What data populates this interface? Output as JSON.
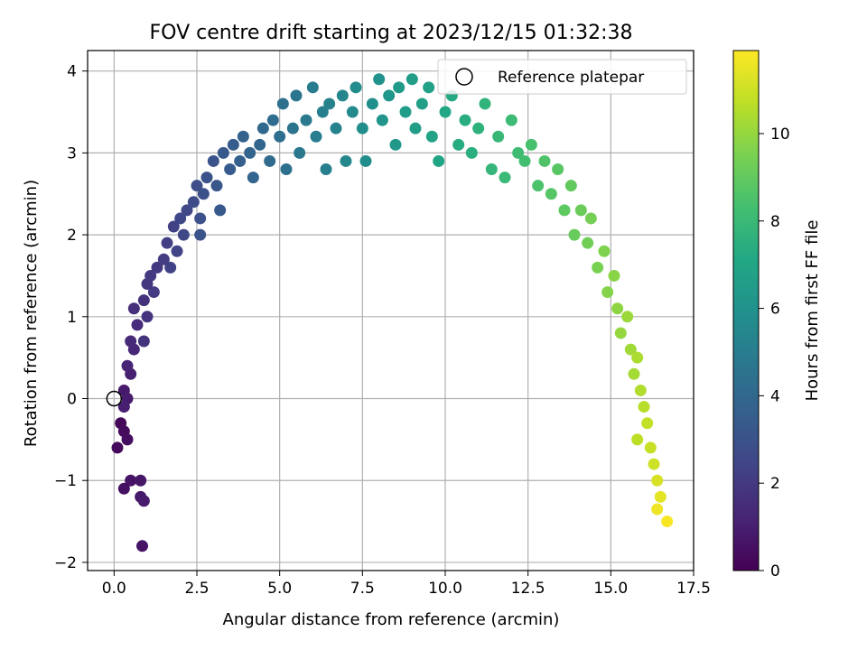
{
  "chart_data": {
    "type": "scatter",
    "title": "FOV centre drift starting at 2023/12/15 01:32:38",
    "xlabel": "Angular distance from reference (arcmin)",
    "ylabel": "Rotation from reference (arcmin)",
    "xlim": [
      -0.8,
      17.5
    ],
    "ylim": [
      -2.1,
      4.25
    ],
    "xticks": [
      0.0,
      2.5,
      5.0,
      7.5,
      10.0,
      12.5,
      15.0,
      17.5
    ],
    "xtick_labels": [
      "0.0",
      "2.5",
      "5.0",
      "7.5",
      "10.0",
      "12.5",
      "15.0",
      "17.5"
    ],
    "yticks": [
      -2,
      -1,
      0,
      1,
      2,
      3,
      4
    ],
    "ytick_labels": [
      "−2",
      "−1",
      "0",
      "1",
      "2",
      "3",
      "4"
    ],
    "grid": true,
    "legend": {
      "location": "upper right",
      "entries": [
        {
          "label": "Reference platepar",
          "marker": "hollow-circle",
          "x": 0.0,
          "y": 0.0
        }
      ]
    },
    "colorbar": {
      "label": "Hours from first FF file",
      "colormap": "viridis",
      "range": [
        0,
        11.9
      ],
      "ticks": [
        0,
        2,
        4,
        6,
        8,
        10
      ],
      "tick_labels": [
        "0",
        "2",
        "4",
        "6",
        "8",
        "10"
      ]
    },
    "series": [
      {
        "color_by": "hours",
        "points": [
          {
            "x": 0.2,
            "y": -0.3,
            "c": 0.2
          },
          {
            "x": 0.3,
            "y": -0.4,
            "c": 0.3
          },
          {
            "x": 0.1,
            "y": -0.6,
            "c": 0.3
          },
          {
            "x": 0.4,
            "y": -0.5,
            "c": 0.4
          },
          {
            "x": 0.3,
            "y": -1.1,
            "c": 0.5
          },
          {
            "x": 0.5,
            "y": -1.0,
            "c": 0.6
          },
          {
            "x": 0.8,
            "y": -1.0,
            "c": 0.7
          },
          {
            "x": 0.8,
            "y": -1.2,
            "c": 0.8
          },
          {
            "x": 0.9,
            "y": -1.25,
            "c": 0.9
          },
          {
            "x": 0.85,
            "y": -1.8,
            "c": 0.6
          },
          {
            "x": 0.3,
            "y": 0.1,
            "c": 0.8
          },
          {
            "x": 0.4,
            "y": 0.0,
            "c": 0.9
          },
          {
            "x": 0.3,
            "y": -0.1,
            "c": 1.0
          },
          {
            "x": 0.5,
            "y": 0.3,
            "c": 1.1
          },
          {
            "x": 0.4,
            "y": 0.4,
            "c": 1.2
          },
          {
            "x": 0.6,
            "y": 0.6,
            "c": 1.3
          },
          {
            "x": 0.5,
            "y": 0.7,
            "c": 1.4
          },
          {
            "x": 0.7,
            "y": 0.9,
            "c": 1.5
          },
          {
            "x": 0.6,
            "y": 1.1,
            "c": 1.6
          },
          {
            "x": 0.9,
            "y": 1.2,
            "c": 1.7
          },
          {
            "x": 1.0,
            "y": 1.0,
            "c": 1.8
          },
          {
            "x": 0.9,
            "y": 0.7,
            "c": 1.8
          },
          {
            "x": 1.0,
            "y": 1.4,
            "c": 1.9
          },
          {
            "x": 1.1,
            "y": 1.5,
            "c": 2.0
          },
          {
            "x": 1.3,
            "y": 1.6,
            "c": 2.0
          },
          {
            "x": 1.2,
            "y": 1.3,
            "c": 2.1
          },
          {
            "x": 1.5,
            "y": 1.7,
            "c": 2.1
          },
          {
            "x": 1.6,
            "y": 1.9,
            "c": 2.2
          },
          {
            "x": 1.7,
            "y": 1.6,
            "c": 2.3
          },
          {
            "x": 1.8,
            "y": 2.1,
            "c": 2.3
          },
          {
            "x": 1.9,
            "y": 1.8,
            "c": 2.4
          },
          {
            "x": 2.0,
            "y": 2.2,
            "c": 2.5
          },
          {
            "x": 2.1,
            "y": 2.0,
            "c": 2.6
          },
          {
            "x": 2.2,
            "y": 2.3,
            "c": 2.6
          },
          {
            "x": 2.4,
            "y": 2.4,
            "c": 2.7
          },
          {
            "x": 2.5,
            "y": 2.6,
            "c": 2.8
          },
          {
            "x": 2.6,
            "y": 2.2,
            "c": 2.9
          },
          {
            "x": 2.7,
            "y": 2.5,
            "c": 2.9
          },
          {
            "x": 2.8,
            "y": 2.7,
            "c": 3.0
          },
          {
            "x": 2.6,
            "y": 2.0,
            "c": 3.0
          },
          {
            "x": 3.0,
            "y": 2.9,
            "c": 3.1
          },
          {
            "x": 3.1,
            "y": 2.6,
            "c": 3.2
          },
          {
            "x": 3.3,
            "y": 3.0,
            "c": 3.3
          },
          {
            "x": 3.2,
            "y": 2.3,
            "c": 3.3
          },
          {
            "x": 3.5,
            "y": 2.8,
            "c": 3.4
          },
          {
            "x": 3.6,
            "y": 3.1,
            "c": 3.5
          },
          {
            "x": 3.8,
            "y": 2.9,
            "c": 3.6
          },
          {
            "x": 3.9,
            "y": 3.2,
            "c": 3.7
          },
          {
            "x": 4.1,
            "y": 3.0,
            "c": 3.8
          },
          {
            "x": 4.2,
            "y": 2.7,
            "c": 3.8
          },
          {
            "x": 4.4,
            "y": 3.1,
            "c": 3.9
          },
          {
            "x": 4.5,
            "y": 3.3,
            "c": 4.0
          },
          {
            "x": 4.7,
            "y": 2.9,
            "c": 4.1
          },
          {
            "x": 4.8,
            "y": 3.4,
            "c": 4.2
          },
          {
            "x": 5.0,
            "y": 3.2,
            "c": 4.3
          },
          {
            "x": 5.1,
            "y": 3.6,
            "c": 4.4
          },
          {
            "x": 5.2,
            "y": 2.8,
            "c": 4.4
          },
          {
            "x": 5.4,
            "y": 3.3,
            "c": 4.5
          },
          {
            "x": 5.5,
            "y": 3.7,
            "c": 4.6
          },
          {
            "x": 5.6,
            "y": 3.0,
            "c": 4.7
          },
          {
            "x": 5.8,
            "y": 3.4,
            "c": 4.8
          },
          {
            "x": 6.0,
            "y": 3.8,
            "c": 4.9
          },
          {
            "x": 6.1,
            "y": 3.2,
            "c": 5.0
          },
          {
            "x": 6.3,
            "y": 3.5,
            "c": 5.1
          },
          {
            "x": 6.4,
            "y": 2.8,
            "c": 5.1
          },
          {
            "x": 6.5,
            "y": 3.6,
            "c": 5.2
          },
          {
            "x": 6.7,
            "y": 3.3,
            "c": 5.3
          },
          {
            "x": 6.9,
            "y": 3.7,
            "c": 5.4
          },
          {
            "x": 7.0,
            "y": 2.9,
            "c": 5.5
          },
          {
            "x": 7.2,
            "y": 3.5,
            "c": 5.6
          },
          {
            "x": 7.3,
            "y": 3.8,
            "c": 5.7
          },
          {
            "x": 7.5,
            "y": 3.3,
            "c": 5.8
          },
          {
            "x": 7.6,
            "y": 2.9,
            "c": 5.8
          },
          {
            "x": 7.8,
            "y": 3.6,
            "c": 5.9
          },
          {
            "x": 8.0,
            "y": 3.9,
            "c": 6.0
          },
          {
            "x": 8.1,
            "y": 3.4,
            "c": 6.1
          },
          {
            "x": 8.3,
            "y": 3.7,
            "c": 6.2
          },
          {
            "x": 8.5,
            "y": 3.1,
            "c": 6.3
          },
          {
            "x": 8.6,
            "y": 3.8,
            "c": 6.4
          },
          {
            "x": 8.8,
            "y": 3.5,
            "c": 6.5
          },
          {
            "x": 9.0,
            "y": 3.9,
            "c": 6.6
          },
          {
            "x": 9.1,
            "y": 3.3,
            "c": 6.6
          },
          {
            "x": 9.3,
            "y": 3.6,
            "c": 6.7
          },
          {
            "x": 9.5,
            "y": 3.8,
            "c": 6.8
          },
          {
            "x": 9.6,
            "y": 3.2,
            "c": 6.9
          },
          {
            "x": 9.8,
            "y": 2.9,
            "c": 7.0
          },
          {
            "x": 10.0,
            "y": 3.5,
            "c": 7.1
          },
          {
            "x": 10.2,
            "y": 3.7,
            "c": 7.2
          },
          {
            "x": 10.4,
            "y": 3.1,
            "c": 7.3
          },
          {
            "x": 10.6,
            "y": 3.4,
            "c": 7.4
          },
          {
            "x": 10.8,
            "y": 3.0,
            "c": 7.5
          },
          {
            "x": 11.0,
            "y": 3.3,
            "c": 7.6
          },
          {
            "x": 11.2,
            "y": 3.6,
            "c": 7.7
          },
          {
            "x": 11.4,
            "y": 2.8,
            "c": 7.8
          },
          {
            "x": 11.6,
            "y": 3.2,
            "c": 7.9
          },
          {
            "x": 11.8,
            "y": 2.7,
            "c": 8.0
          },
          {
            "x": 12.0,
            "y": 3.4,
            "c": 8.1
          },
          {
            "x": 12.2,
            "y": 3.0,
            "c": 8.2
          },
          {
            "x": 12.4,
            "y": 2.9,
            "c": 8.3
          },
          {
            "x": 12.6,
            "y": 3.1,
            "c": 8.4
          },
          {
            "x": 12.8,
            "y": 2.6,
            "c": 8.5
          },
          {
            "x": 13.0,
            "y": 2.9,
            "c": 8.6
          },
          {
            "x": 13.2,
            "y": 2.5,
            "c": 8.7
          },
          {
            "x": 13.4,
            "y": 2.8,
            "c": 8.8
          },
          {
            "x": 13.6,
            "y": 2.3,
            "c": 8.9
          },
          {
            "x": 13.8,
            "y": 2.6,
            "c": 9.0
          },
          {
            "x": 13.9,
            "y": 2.0,
            "c": 9.1
          },
          {
            "x": 14.1,
            "y": 2.3,
            "c": 9.2
          },
          {
            "x": 14.3,
            "y": 1.9,
            "c": 9.3
          },
          {
            "x": 14.4,
            "y": 2.2,
            "c": 9.4
          },
          {
            "x": 14.6,
            "y": 1.6,
            "c": 9.5
          },
          {
            "x": 14.8,
            "y": 1.8,
            "c": 9.6
          },
          {
            "x": 14.9,
            "y": 1.3,
            "c": 9.7
          },
          {
            "x": 15.1,
            "y": 1.5,
            "c": 9.8
          },
          {
            "x": 15.2,
            "y": 1.1,
            "c": 9.9
          },
          {
            "x": 15.3,
            "y": 0.8,
            "c": 10.0
          },
          {
            "x": 15.5,
            "y": 1.0,
            "c": 10.1
          },
          {
            "x": 15.6,
            "y": 0.6,
            "c": 10.2
          },
          {
            "x": 15.7,
            "y": 0.3,
            "c": 10.3
          },
          {
            "x": 15.8,
            "y": 0.5,
            "c": 10.4
          },
          {
            "x": 15.9,
            "y": 0.1,
            "c": 10.5
          },
          {
            "x": 16.0,
            "y": -0.1,
            "c": 10.6
          },
          {
            "x": 15.8,
            "y": -0.5,
            "c": 10.7
          },
          {
            "x": 16.1,
            "y": -0.3,
            "c": 10.8
          },
          {
            "x": 16.2,
            "y": -0.6,
            "c": 10.9
          },
          {
            "x": 16.3,
            "y": -0.8,
            "c": 11.0
          },
          {
            "x": 16.4,
            "y": -1.0,
            "c": 11.2
          },
          {
            "x": 16.5,
            "y": -1.2,
            "c": 11.4
          },
          {
            "x": 16.4,
            "y": -1.35,
            "c": 11.6
          },
          {
            "x": 16.7,
            "y": -1.5,
            "c": 11.8
          }
        ]
      }
    ]
  }
}
